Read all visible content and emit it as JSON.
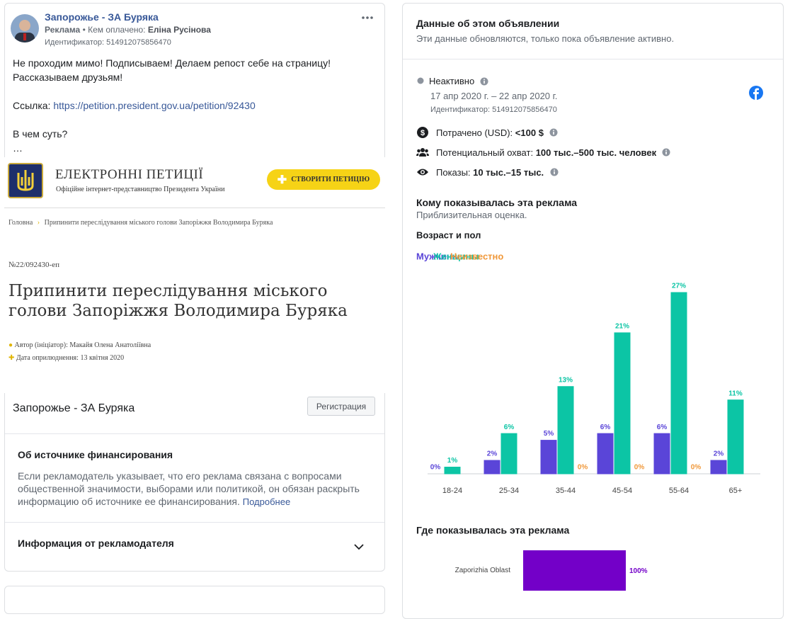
{
  "ad": {
    "page_name": "Запорожье - ЗА Буряка",
    "sponsored_label": "Реклама",
    "paid_by_label": "• Кем оплачено:",
    "payer": "Еліна Русінова",
    "id": "Идентификатор: 514912075856470",
    "text_1": "Не проходим мимо! Подписываем! Делаем репост себе на страницу! Рассказываем друзьям!",
    "link_label": "Ссылка:",
    "link": "https://petition.president.gov.ua/petition/92430",
    "text_2": "В чем суть?",
    "ellipsis": "…",
    "image": {
      "site_title": "ЕЛЕКТРОННІ ПЕТИЦІЇ",
      "site_subtitle": "Офіційне інтернет-представництво Президента України",
      "button": "СТВОРИТИ ПЕТИЦІЮ",
      "crumb_home": "Головна",
      "crumb_current": "Припинити переслідування міського голови Запоріжжя Володимира Буряка",
      "number": "№22/092430-еп",
      "heading": "Припинити переслідування міського голови Запоріжжя Володимира Буряка",
      "author": "Автор (ініціатор): Макайя Олена Анатоліївна",
      "date": "Дата оприлюднення: 13 квітня 2020"
    },
    "cta_title": "Запорожье - ЗА Буряка",
    "cta_button": "Регистрация",
    "funding_title": "Об источнике финансирования",
    "funding_text": "Если рекламодатель указывает, что его реклама связана с вопросами общественной значимости, выборами или политикой, он обязан раскрыть информацию об источнике ее финансирования.",
    "funding_more": "Подробнее",
    "advertiser_info": "Информация от рекламодателя"
  },
  "details": {
    "title": "Данные об этом объявлении",
    "subtitle": "Эти данные обновляются, только пока объявление активно.",
    "status": "Неактивно",
    "dates": "17 апр 2020 г. – 22 апр 2020 г.",
    "id": "Идентификатор: 514912075856470",
    "spent_label": "Потрачено (USD):",
    "spent": "<100 $",
    "reach_label": "Потенциальный охват:",
    "reach": "100 тыс.–500 тыс. человек",
    "impressions_label": "Показы:",
    "impressions": "10 тыс.–15 тыс."
  },
  "audience": {
    "title": "Кому показывалась эта реклама",
    "subtitle": "Приблизительная оценка."
  },
  "chart_data": [
    {
      "type": "bar",
      "title": "Возраст и пол",
      "categories": [
        "18-24",
        "25-34",
        "35-44",
        "45-54",
        "55-64",
        "65+"
      ],
      "series": [
        {
          "name": "Мужчины",
          "color": "#5a45d8",
          "values": [
            0,
            2,
            5,
            6,
            6,
            2
          ],
          "value_labels": [
            "0%",
            "2%",
            "5%",
            "6%",
            "6%",
            "2%"
          ]
        },
        {
          "name": "Женщины",
          "color": "#0cc5a5",
          "values": [
            1,
            6,
            13,
            21,
            27,
            11
          ],
          "value_labels": [
            "1%",
            "6%",
            "13%",
            "21%",
            "27%",
            "11%"
          ]
        },
        {
          "name": "Неизвестно",
          "color": "#f0983a",
          "values": [
            null,
            null,
            0,
            0,
            0,
            null
          ],
          "value_labels": [
            null,
            null,
            "0%",
            "0%",
            "0%",
            null
          ]
        }
      ]
    },
    {
      "type": "barh",
      "title": "Где показывалась эта реклама",
      "categories": [
        "Zaporizhia Oblast"
      ],
      "values": [
        100
      ],
      "value_labels": [
        "100%"
      ],
      "color": "#7300c8"
    }
  ]
}
